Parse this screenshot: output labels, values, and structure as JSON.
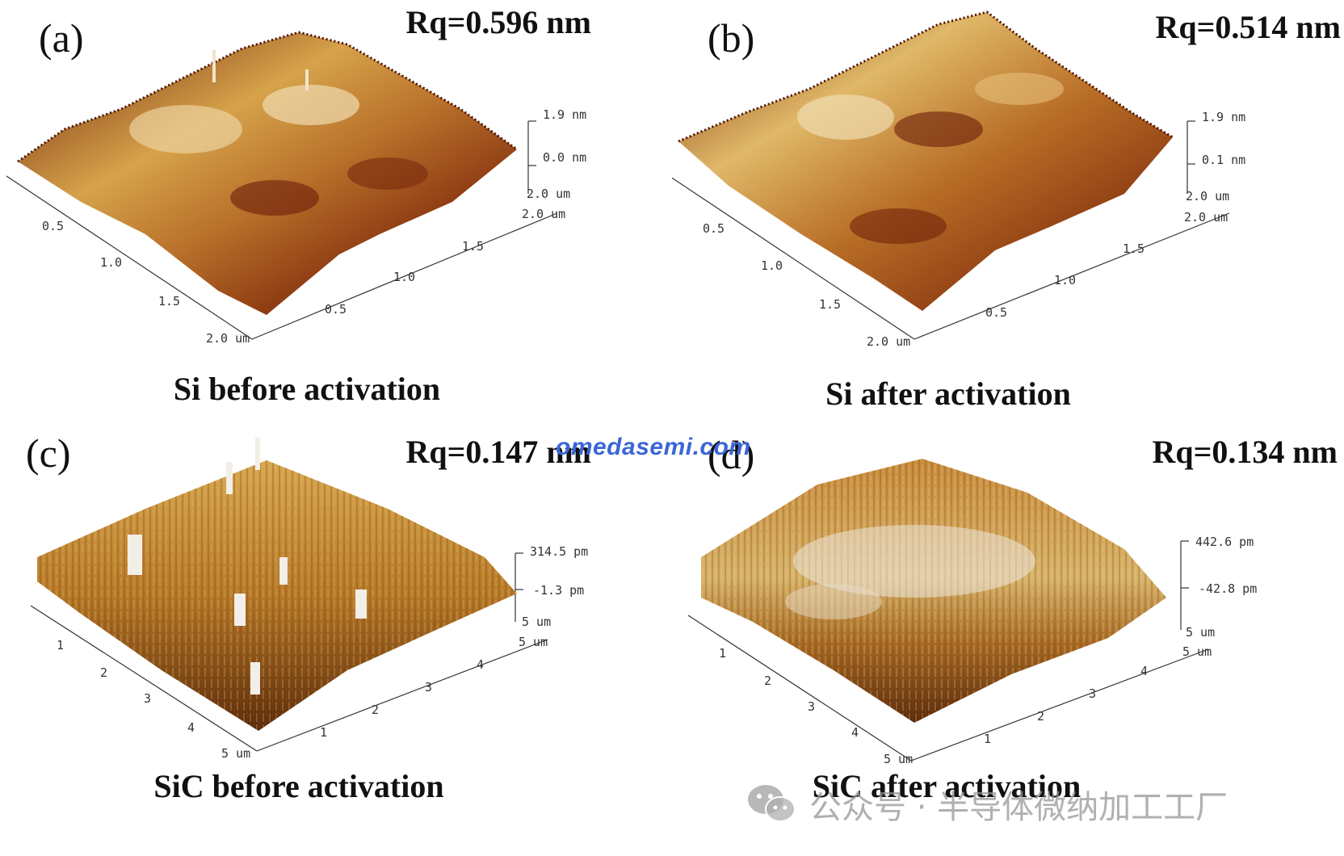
{
  "panels": [
    {
      "letter": "(a)",
      "rq": "Rq=0.596 nm",
      "caption": "Si before activation",
      "z_labels": [
        "1.9 nm",
        "0.0 nm"
      ],
      "corner_labels": [
        "2.0 um",
        "2.0 um"
      ],
      "left_axis": [
        "0.5",
        "1.0",
        "1.5",
        "2.0 um"
      ],
      "right_axis": [
        "0.5",
        "1.0",
        "1.5"
      ],
      "colors": [
        "#5a1608",
        "#8c3a12",
        "#b56b1e",
        "#d8a040",
        "#f0dcb0"
      ]
    },
    {
      "letter": "(b)",
      "rq": "Rq=0.514 nm",
      "caption": "Si after activation",
      "z_labels": [
        "1.9 nm",
        "0.1 nm"
      ],
      "corner_labels": [
        "2.0 um",
        "2.0 um"
      ],
      "left_axis": [
        "0.5",
        "1.0",
        "1.5",
        "2.0 um"
      ],
      "right_axis": [
        "0.5",
        "1.0",
        "1.5"
      ],
      "colors": [
        "#5a1608",
        "#8c3a12",
        "#b56b1e",
        "#d8a040",
        "#f0dcb0"
      ]
    },
    {
      "letter": "(c)",
      "rq": "Rq=0.147 nm",
      "caption": "SiC before activation",
      "z_labels": [
        "314.5 pm",
        "-1.3 pm"
      ],
      "corner_labels": [
        "5 um",
        "5 um"
      ],
      "left_axis": [
        "1",
        "2",
        "3",
        "4",
        "5 um"
      ],
      "right_axis": [
        "1",
        "2",
        "3",
        "4"
      ],
      "colors": [
        "#5a2a0a",
        "#8a4a14",
        "#b87a28",
        "#d4a24a",
        "#f2eee8"
      ]
    },
    {
      "letter": "(d)",
      "rq": "Rq=0.134 nm",
      "caption": "SiC after activation",
      "z_labels": [
        "442.6 pm",
        "-42.8 pm"
      ],
      "corner_labels": [
        "5 um",
        "5 um"
      ],
      "left_axis": [
        "1",
        "2",
        "3",
        "4",
        "5 um"
      ],
      "right_axis": [
        "1",
        "2",
        "3",
        "4"
      ],
      "colors": [
        "#5a2a0a",
        "#8a4a14",
        "#b87a28",
        "#d8b46a",
        "#ece6dc"
      ]
    }
  ],
  "watermark": "omedasemi.com",
  "wechat": {
    "text": "公众号 · 半导体微纳加工工厂",
    "icon": "wechat-icon"
  }
}
